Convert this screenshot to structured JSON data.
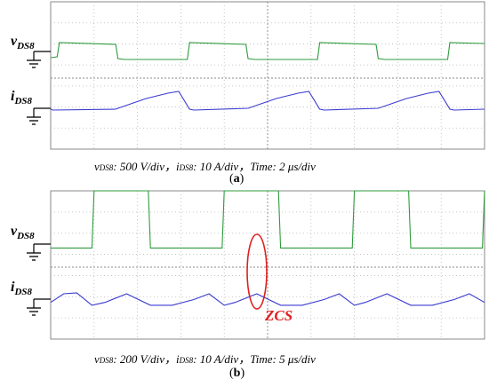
{
  "colors": {
    "voltage": "#2f9b3e",
    "current": "#3a3ad0",
    "grid": "#b9b9b9",
    "highlight": "#e02020"
  },
  "panels": [
    {
      "id": "a",
      "label_v_main": "v",
      "label_v_sub": "DS8",
      "label_i_main": "i",
      "label_i_sub": "DS8",
      "caption": {
        "v_sym": "v",
        "v_sub": "DS8",
        "v_scale": ": 500 V/div，",
        "i_sym": "i",
        "i_sub": "DS8",
        "i_scale": ": 10 A/div，",
        "time": "Time: 2 μs/div"
      },
      "sub_label": "a"
    },
    {
      "id": "b",
      "label_v_main": "v",
      "label_v_sub": "DS8",
      "label_i_main": "i",
      "label_i_sub": "DS8",
      "caption": {
        "v_sym": "v",
        "v_sub": "DS8",
        "v_scale": ": 200 V/div，",
        "i_sym": "i",
        "i_sub": "DS8",
        "i_scale": ": 10 A/div，",
        "time": "Time: 5 μs/div"
      },
      "sub_label": "b",
      "annotation": "ZCS"
    }
  ],
  "chart_data": [
    {
      "type": "line",
      "title": "(a)",
      "xlabel": "Time: 2 μs/div",
      "divisions": 10,
      "series": [
        {
          "name": "vDS8",
          "scale": "500 V/div",
          "x": [
            0,
            0.15,
            0.2,
            1.5,
            1.55,
            1.7,
            3.15,
            3.2,
            4.5,
            4.55,
            4.7,
            6.15,
            6.2,
            7.5,
            7.55,
            7.7,
            9.15,
            9.2,
            10
          ],
          "y": [
            0.25,
            0.3,
            1.1,
            1.0,
            0.2,
            0.15,
            0.15,
            1.1,
            1.0,
            0.2,
            0.15,
            0.15,
            1.1,
            1.0,
            0.2,
            0.15,
            0.15,
            1.1,
            1.05
          ]
        },
        {
          "name": "iDS8",
          "scale": "10 A/div",
          "x": [
            0,
            0.05,
            1.5,
            1.55,
            2.2,
            2.7,
            2.95,
            3.2,
            3.3,
            4.55,
            5.2,
            5.7,
            5.95,
            6.2,
            6.3,
            7.55,
            8.2,
            8.7,
            8.95,
            9.2,
            9.3,
            10
          ],
          "y": [
            0.3,
            0.25,
            0.3,
            0.35,
            0.9,
            1.2,
            1.3,
            0.3,
            0.25,
            0.35,
            0.9,
            1.2,
            1.3,
            0.3,
            0.25,
            0.35,
            0.9,
            1.2,
            1.3,
            0.3,
            0.25,
            0.3
          ]
        }
      ]
    },
    {
      "type": "line",
      "title": "(b)",
      "xlabel": "Time: 5 μs/div",
      "divisions": 10,
      "annotations": [
        "ZCS"
      ],
      "series": [
        {
          "name": "vDS8",
          "scale": "200 V/div",
          "x": [
            0,
            0.95,
            1.0,
            2.25,
            2.3,
            3.95,
            4.0,
            5.25,
            5.3,
            6.95,
            7.0,
            8.25,
            8.3,
            9.95,
            10.0
          ],
          "y": [
            0.1,
            0.1,
            1.5,
            1.5,
            0.1,
            0.1,
            1.5,
            1.5,
            0.1,
            0.1,
            1.5,
            1.5,
            0.1,
            0.1,
            1.5
          ]
        },
        {
          "name": "iDS8",
          "scale": "10 A/div",
          "x": [
            0,
            0.3,
            0.6,
            0.95,
            1.25,
            1.75,
            2.3,
            2.8,
            3.3,
            3.65,
            4.0,
            4.25,
            4.75,
            5.3,
            5.8,
            6.3,
            6.65,
            7.0,
            7.25,
            7.75,
            8.3,
            8.8,
            9.3,
            9.65,
            10.0
          ],
          "y": [
            0.2,
            0.65,
            0.7,
            0.05,
            0.2,
            0.65,
            0.05,
            0.05,
            0.35,
            0.65,
            0.05,
            0.2,
            0.65,
            0.05,
            0.05,
            0.35,
            0.65,
            0.05,
            0.2,
            0.65,
            0.05,
            0.05,
            0.35,
            0.65,
            0.2
          ]
        }
      ]
    }
  ]
}
